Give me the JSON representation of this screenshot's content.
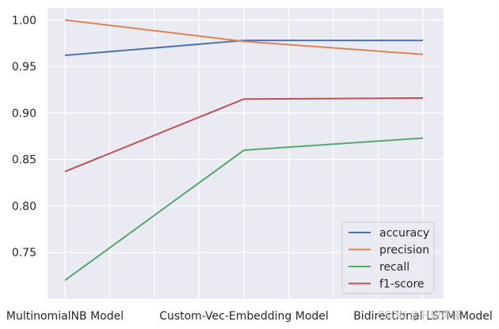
{
  "chart_data": {
    "type": "line",
    "categories": [
      "MultinomialNB Model",
      "Custom-Vec-Embedding Model",
      "Bidirectional LSTM Model"
    ],
    "series": [
      {
        "name": "accuracy",
        "values": [
          0.962,
          0.978,
          0.978
        ],
        "color": "#4c72b0"
      },
      {
        "name": "precision",
        "values": [
          1.0,
          0.977,
          0.963
        ],
        "color": "#dd8452"
      },
      {
        "name": "recall",
        "values": [
          0.72,
          0.86,
          0.873
        ],
        "color": "#55a868"
      },
      {
        "name": "f1-score",
        "values": [
          0.837,
          0.915,
          0.916
        ],
        "color": "#c44e52"
      }
    ],
    "yticks": [
      "0.75",
      "0.80",
      "0.85",
      "0.90",
      "0.95",
      "1.00"
    ],
    "ylim": [
      0.7,
      1.013
    ],
    "grid": true,
    "legend_position": "lower-right",
    "background": "#eaeaf2",
    "title": "",
    "xlabel": "",
    "ylabel": ""
  },
  "watermark": "CSDN @轩辕烨瑾"
}
